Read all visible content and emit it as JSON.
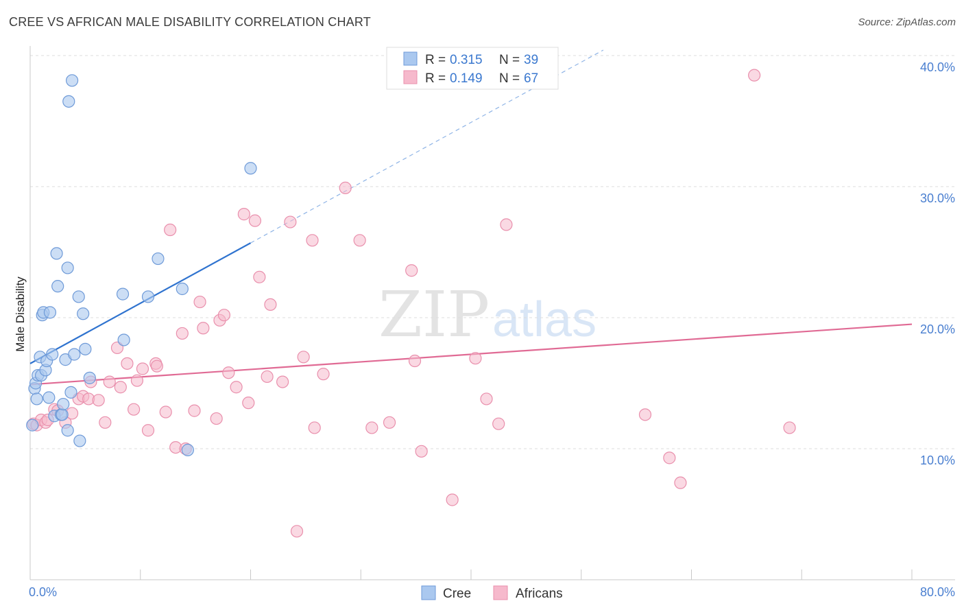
{
  "title": "CREE VS AFRICAN MALE DISABILITY CORRELATION CHART",
  "source": "Source: ZipAtlas.com",
  "watermark": {
    "zip": "ZIP",
    "atlas": "atlas"
  },
  "colors": {
    "cree_fill": "#aac8ef",
    "cree_stroke": "#6e9ad8",
    "cree_line": "#2f73cf",
    "africans_fill": "#f6b9cc",
    "africans_stroke": "#e98fac",
    "africans_line": "#e06a94",
    "tick_label": "#4a7fd0",
    "grid": "#dcdcdc"
  },
  "legend": {
    "rows": [
      {
        "r_label": "R =",
        "r_value": "0.315",
        "n_label": "N =",
        "n_value": "39"
      },
      {
        "r_label": "R =",
        "r_value": "0.149",
        "n_label": "N =",
        "n_value": "67"
      }
    ]
  },
  "bottom_legend": {
    "cree": "Cree",
    "africans": "Africans"
  },
  "chart_data": {
    "type": "scatter",
    "title": "CREE VS AFRICAN MALE DISABILITY CORRELATION CHART",
    "xlabel": "",
    "ylabel": "Male Disability",
    "xlim": [
      0,
      80
    ],
    "ylim": [
      0,
      41
    ],
    "x_tick_labels": [
      "0.0%",
      "80.0%"
    ],
    "y_ticks": [
      10,
      20,
      30,
      40
    ],
    "y_tick_labels": [
      "10.0%",
      "20.0%",
      "30.0%",
      "40.0%"
    ],
    "grid": true,
    "legend_position": "top-center",
    "series": [
      {
        "name": "Cree",
        "r": 0.315,
        "n": 39,
        "trend": {
          "x0": 0,
          "y0": 16.5,
          "x1": 20,
          "y1": 25.7,
          "dashed_to_x": 52
        },
        "points": [
          [
            0.2,
            11.8
          ],
          [
            0.4,
            14.6
          ],
          [
            0.5,
            15.0
          ],
          [
            0.6,
            13.8
          ],
          [
            0.7,
            15.6
          ],
          [
            0.9,
            17.0
          ],
          [
            1.0,
            15.6
          ],
          [
            1.1,
            20.2
          ],
          [
            1.2,
            20.4
          ],
          [
            1.4,
            16.0
          ],
          [
            1.5,
            16.7
          ],
          [
            1.7,
            13.9
          ],
          [
            1.8,
            20.4
          ],
          [
            2.0,
            17.2
          ],
          [
            2.2,
            12.5
          ],
          [
            2.4,
            24.9
          ],
          [
            2.5,
            22.4
          ],
          [
            2.8,
            12.6
          ],
          [
            2.9,
            12.6
          ],
          [
            3.0,
            13.4
          ],
          [
            3.2,
            16.8
          ],
          [
            3.4,
            11.4
          ],
          [
            3.4,
            23.8
          ],
          [
            3.5,
            36.5
          ],
          [
            3.7,
            14.3
          ],
          [
            3.8,
            38.1
          ],
          [
            4.0,
            17.2
          ],
          [
            4.4,
            21.6
          ],
          [
            4.5,
            10.6
          ],
          [
            4.8,
            20.3
          ],
          [
            5.0,
            17.6
          ],
          [
            5.4,
            15.4
          ],
          [
            8.4,
            21.8
          ],
          [
            8.5,
            18.3
          ],
          [
            10.7,
            21.6
          ],
          [
            11.6,
            24.5
          ],
          [
            13.8,
            22.2
          ],
          [
            14.3,
            9.9
          ],
          [
            20.0,
            31.4
          ]
        ]
      },
      {
        "name": "Africans",
        "r": 0.149,
        "n": 67,
        "trend": {
          "x0": 0,
          "y0": 14.9,
          "x1": 80,
          "y1": 19.5
        },
        "points": [
          [
            0.3,
            11.9
          ],
          [
            0.6,
            11.8
          ],
          [
            1.0,
            12.2
          ],
          [
            1.4,
            12.0
          ],
          [
            1.6,
            12.2
          ],
          [
            2.2,
            13.0
          ],
          [
            2.5,
            12.9
          ],
          [
            3.2,
            12.0
          ],
          [
            3.8,
            12.7
          ],
          [
            4.4,
            13.8
          ],
          [
            4.8,
            14.0
          ],
          [
            5.3,
            13.8
          ],
          [
            5.5,
            15.1
          ],
          [
            6.2,
            13.7
          ],
          [
            6.8,
            12.0
          ],
          [
            7.2,
            15.1
          ],
          [
            7.9,
            17.7
          ],
          [
            8.2,
            14.7
          ],
          [
            8.8,
            16.5
          ],
          [
            9.4,
            13.0
          ],
          [
            9.7,
            15.2
          ],
          [
            10.2,
            16.1
          ],
          [
            10.7,
            11.4
          ],
          [
            11.4,
            16.5
          ],
          [
            11.5,
            16.3
          ],
          [
            12.3,
            12.8
          ],
          [
            12.7,
            26.7
          ],
          [
            13.2,
            10.1
          ],
          [
            13.8,
            18.8
          ],
          [
            14.1,
            10.0
          ],
          [
            14.9,
            12.9
          ],
          [
            15.4,
            21.2
          ],
          [
            15.7,
            19.2
          ],
          [
            16.9,
            12.3
          ],
          [
            17.2,
            19.8
          ],
          [
            17.6,
            20.2
          ],
          [
            18.0,
            15.8
          ],
          [
            18.7,
            14.7
          ],
          [
            19.4,
            27.9
          ],
          [
            19.8,
            13.5
          ],
          [
            20.4,
            27.4
          ],
          [
            20.8,
            23.1
          ],
          [
            21.5,
            15.5
          ],
          [
            21.8,
            21.0
          ],
          [
            22.9,
            15.1
          ],
          [
            23.6,
            27.3
          ],
          [
            24.2,
            3.7
          ],
          [
            24.8,
            17.0
          ],
          [
            25.6,
            25.9
          ],
          [
            25.8,
            11.6
          ],
          [
            26.6,
            15.7
          ],
          [
            28.6,
            29.9
          ],
          [
            29.9,
            25.9
          ],
          [
            31.0,
            11.6
          ],
          [
            32.6,
            12.0
          ],
          [
            34.6,
            23.6
          ],
          [
            34.9,
            16.7
          ],
          [
            35.5,
            9.8
          ],
          [
            38.3,
            6.1
          ],
          [
            40.4,
            16.9
          ],
          [
            41.4,
            13.8
          ],
          [
            42.5,
            11.9
          ],
          [
            43.2,
            27.1
          ],
          [
            55.8,
            12.6
          ],
          [
            58.0,
            9.3
          ],
          [
            59.0,
            7.4
          ],
          [
            65.7,
            38.5
          ],
          [
            68.9,
            11.6
          ]
        ]
      }
    ]
  }
}
